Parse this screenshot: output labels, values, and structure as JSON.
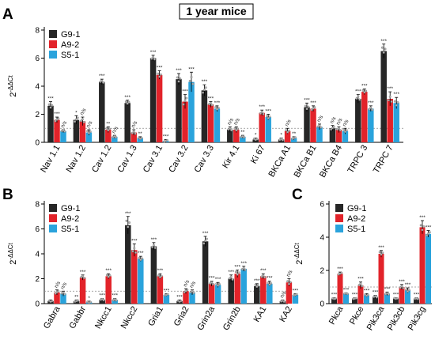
{
  "figure_title": "1 year mice",
  "colors": {
    "G9-1": "#262626",
    "A9-2": "#e2232a",
    "S5-1": "#2aa3dc",
    "dots": "#b5b5b5",
    "baseline": "#8c8c8c"
  },
  "chart_data": [
    {
      "panel": "A",
      "type": "bar",
      "ylabel": "2^-ΔΔCt",
      "ylim": [
        0,
        8
      ],
      "yticks": [
        0,
        2,
        4,
        6,
        8
      ],
      "baseline": 1,
      "legend_position": "top-left",
      "categories": [
        "Nav 1.1",
        "Nav 1.2",
        "Cav 1.2",
        "Cav 1.3",
        "Cav 3.1",
        "Cav 3.2",
        "Cav 3.3",
        "Kir 4.1",
        "Ki 67",
        "BKCa A1",
        "BKCa B1",
        "BKCa B4",
        "TRPC 3",
        "TRPC 7"
      ],
      "series": [
        {
          "name": "G9-1",
          "values": [
            2.6,
            1.6,
            4.3,
            2.8,
            6.0,
            4.5,
            3.7,
            0.9,
            0.2,
            0.2,
            2.5,
            1.0,
            3.1,
            6.5
          ],
          "errors": [
            0.3,
            0.3,
            0.2,
            0.2,
            0.2,
            0.4,
            0.4,
            0.2,
            0.1,
            0.1,
            0.3,
            0.2,
            0.3,
            0.5
          ]
        },
        {
          "name": "A9-2",
          "values": [
            1.6,
            1.5,
            0.9,
            0.7,
            4.8,
            2.9,
            2.7,
            0.9,
            2.1,
            0.8,
            2.4,
            0.9,
            3.6,
            3.1
          ],
          "errors": [
            0.2,
            0.3,
            0.2,
            0.2,
            0.3,
            0.5,
            0.2,
            0.2,
            0.2,
            0.2,
            0.2,
            0.2,
            0.2,
            0.5
          ]
        },
        {
          "name": "S5-1",
          "values": [
            0.8,
            0.7,
            0.4,
            0.3,
            0.1,
            4.3,
            2.4,
            0.4,
            1.8,
            0.3,
            1.1,
            0.8,
            2.4,
            2.8
          ],
          "errors": [
            0.1,
            0.2,
            0.1,
            0.1,
            0.1,
            0.7,
            0.2,
            0.1,
            0.2,
            0.1,
            0.2,
            0.2,
            0.2,
            0.4
          ]
        }
      ],
      "annotations": [
        [
          "***",
          "***",
          "n/s"
        ],
        [
          "*",
          "n/s",
          "n/s"
        ],
        [
          "***",
          "**",
          "n/s"
        ],
        [
          "***",
          "n/s",
          "**"
        ],
        [
          "***",
          "***",
          "***"
        ],
        [
          "***",
          "***",
          "***"
        ],
        [
          "***",
          "***",
          "***"
        ],
        [
          "n/s",
          "n/s",
          "**"
        ],
        [
          "*",
          "***",
          "***"
        ],
        [
          "*",
          "n/s",
          "**"
        ],
        [
          "***",
          "***",
          "n/s"
        ],
        [
          "n/s",
          "n/s",
          "n/s"
        ],
        [
          "***",
          "***",
          "***"
        ],
        [
          "***",
          "***",
          "***"
        ]
      ]
    },
    {
      "panel": "B",
      "type": "bar",
      "ylabel": "2^-ΔΔCt",
      "ylim": [
        0,
        8
      ],
      "yticks": [
        0,
        2,
        4,
        6,
        8
      ],
      "baseline": 1,
      "legend_position": "top-left",
      "categories": [
        "Gabra",
        "Gabbr",
        "Nkcc1",
        "Nkcc2",
        "Gria1",
        "Gria2",
        "Grin2a",
        "Grin2b",
        "KA1",
        "KA2"
      ],
      "series": [
        {
          "name": "G9-1",
          "values": [
            0.2,
            0.2,
            0.3,
            6.3,
            4.6,
            0.2,
            5.0,
            2.0,
            1.4,
            0.2
          ],
          "errors": [
            0.1,
            0.1,
            0.1,
            0.7,
            0.3,
            0.1,
            0.4,
            0.3,
            0.2,
            0.1
          ]
        },
        {
          "name": "A9-2",
          "values": [
            0.9,
            2.1,
            2.2,
            4.3,
            2.2,
            1.0,
            1.6,
            2.4,
            2.2,
            1.7
          ],
          "errors": [
            0.2,
            0.2,
            0.2,
            0.5,
            0.2,
            0.2,
            0.2,
            0.3,
            0.2,
            0.3
          ]
        },
        {
          "name": "S5-1",
          "values": [
            0.8,
            0.1,
            0.3,
            3.6,
            0.7,
            0.9,
            1.5,
            2.8,
            1.6,
            0.7
          ],
          "errors": [
            0.2,
            0.1,
            0.1,
            0.2,
            0.1,
            0.2,
            0.2,
            0.2,
            0.2,
            0.1
          ]
        }
      ],
      "annotations": [
        [
          "",
          "n/s",
          "n/s"
        ],
        [
          "**",
          "***",
          "*"
        ],
        [
          "***",
          "***",
          "***"
        ],
        [
          "***",
          "***",
          "***"
        ],
        [
          "***",
          "***",
          "***"
        ],
        [
          "***",
          "n/s",
          "n/s"
        ],
        [
          "***",
          "***",
          "***"
        ],
        [
          "***",
          "***",
          "***"
        ],
        [
          "***",
          "***",
          "***"
        ],
        [
          "n/s",
          "n/s",
          "***"
        ]
      ]
    },
    {
      "panel": "C",
      "type": "bar",
      "ylabel": "2^-ΔΔCt",
      "ylim": [
        0,
        6
      ],
      "yticks": [
        0,
        2,
        4,
        6
      ],
      "baseline": 1,
      "legend_position": "top-left",
      "categories": [
        "Pkca",
        "Pkce",
        "Pik3ca",
        "Pik3cb",
        "Pik3cg"
      ],
      "series": [
        {
          "name": "G9-1",
          "values": [
            0.3,
            0.3,
            0.4,
            0.3,
            0.3
          ],
          "errors": [
            0.05,
            0.05,
            0.1,
            0.05,
            0.05
          ]
        },
        {
          "name": "A9-2",
          "values": [
            1.8,
            1.1,
            3.0,
            1.0,
            4.6
          ],
          "errors": [
            0.1,
            0.2,
            0.2,
            0.15,
            0.4
          ]
        },
        {
          "name": "S5-1",
          "values": [
            0.6,
            0.5,
            0.6,
            0.8,
            4.2
          ],
          "errors": [
            0.05,
            0.1,
            0.1,
            0.15,
            0.2
          ]
        }
      ],
      "annotations": [
        [
          "***",
          "***",
          "***"
        ],
        [
          "***",
          "***",
          "***"
        ],
        [
          "***",
          "***",
          "***"
        ],
        [
          "***",
          "***",
          "***"
        ],
        [
          "***",
          "***",
          "***"
        ]
      ]
    }
  ]
}
